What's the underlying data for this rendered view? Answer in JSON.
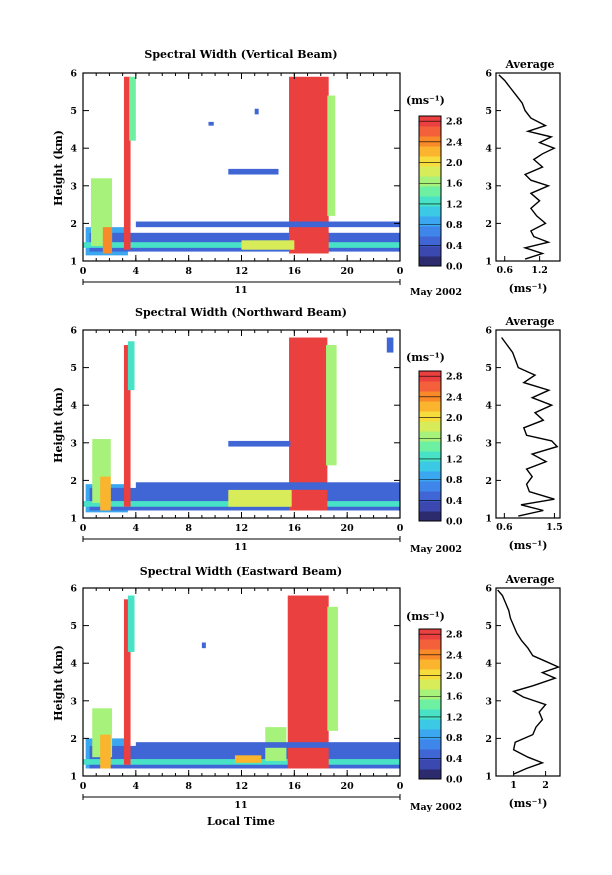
{
  "colors": {
    "scale": [
      "#2b2b6e",
      "#3a48b0",
      "#3f66d4",
      "#3f86ea",
      "#3aa7f0",
      "#3cc9e6",
      "#48e3c6",
      "#6ef0a2",
      "#a6f27a",
      "#d8ec5a",
      "#f7dc3e",
      "#fbb42e",
      "#f98a2a",
      "#f4603a",
      "#ea4040"
    ],
    "high": "#ee3a34",
    "profile": "#000000"
  },
  "footer": {
    "xlabel": "Local Time"
  },
  "chart_data": [
    {
      "type": "heatmap",
      "title": "Spectral Width (Vertical Beam)",
      "xlabel": "",
      "ylabel": "Height (km)",
      "x_ticks": [
        "0",
        "4",
        "8",
        "12",
        "16",
        "20",
        "0"
      ],
      "xlim": [
        0,
        24
      ],
      "y_ticks": [
        "1",
        "2",
        "3",
        "4",
        "5",
        "6"
      ],
      "ylim": [
        1,
        6
      ],
      "date_day": "11",
      "date_month": "May 2002",
      "colorbar": {
        "unit": "(ms⁻¹)",
        "labels": [
          "0.0",
          "0.4",
          "0.8",
          "1.2",
          "1.6",
          "2.0",
          "2.4",
          "2.8"
        ],
        "range": [
          0,
          2.9
        ]
      },
      "cells": [
        {
          "t": [
            0.2,
            3.4
          ],
          "h": [
            1.15,
            1.9
          ],
          "v": 0.9
        },
        {
          "t": [
            0.5,
            24
          ],
          "h": [
            1.25,
            1.75
          ],
          "v": 0.55
        },
        {
          "t": [
            0,
            24
          ],
          "h": [
            1.35,
            1.5
          ],
          "v": 1.3
        },
        {
          "t": [
            0.6,
            2.2
          ],
          "h": [
            1.4,
            3.2
          ],
          "v": 1.7
        },
        {
          "t": [
            3.1,
            3.6
          ],
          "h": [
            1.3,
            5.9
          ],
          "v": 2.9
        },
        {
          "t": [
            3.5,
            4.0
          ],
          "h": [
            4.2,
            5.9
          ],
          "v": 1.4
        },
        {
          "t": [
            15.6,
            18.6
          ],
          "h": [
            1.2,
            5.9
          ],
          "v": 2.9
        },
        {
          "t": [
            18.5,
            19.1
          ],
          "h": [
            2.2,
            5.4
          ],
          "v": 1.6
        },
        {
          "t": [
            12.0,
            16.0
          ],
          "h": [
            1.3,
            1.55
          ],
          "v": 1.9
        },
        {
          "t": [
            11.0,
            14.8
          ],
          "h": [
            3.3,
            3.45
          ],
          "v": 0.5
        },
        {
          "t": [
            4.0,
            24
          ],
          "h": [
            1.9,
            2.05
          ],
          "v": 0.5
        },
        {
          "t": [
            1.5,
            2.2
          ],
          "h": [
            1.2,
            1.9
          ],
          "v": 2.4
        },
        {
          "t": [
            9.5,
            9.9
          ],
          "h": [
            4.6,
            4.7
          ],
          "v": 0.4
        },
        {
          "t": [
            13.0,
            13.3
          ],
          "h": [
            4.9,
            5.05
          ],
          "v": 0.5
        }
      ],
      "profile": {
        "xlabel": "(ms⁻¹)",
        "title": "Average",
        "x_ticks": [
          "0.6",
          "1.2"
        ],
        "xlim": [
          0.45,
          1.55
        ],
        "heights": [
          1.05,
          1.2,
          1.35,
          1.5,
          1.65,
          1.8,
          2.0,
          2.2,
          2.4,
          2.6,
          2.8,
          3.0,
          3.15,
          3.3,
          3.5,
          3.7,
          3.85,
          4.0,
          4.15,
          4.3,
          4.45,
          4.6,
          4.8,
          5.0,
          5.2,
          5.4,
          5.6,
          5.8,
          5.95
        ],
        "values": [
          0.95,
          1.25,
          0.95,
          1.35,
          1.1,
          1.05,
          1.3,
          1.15,
          1.05,
          1.2,
          1.05,
          1.35,
          1.05,
          0.95,
          1.25,
          1.1,
          1.25,
          1.45,
          1.2,
          1.4,
          1.0,
          1.3,
          1.05,
          0.95,
          0.9,
          0.8,
          0.7,
          0.6,
          0.5
        ]
      }
    },
    {
      "type": "heatmap",
      "title": "Spectral Width (Northward Beam)",
      "xlabel": "",
      "ylabel": "Height (km)",
      "x_ticks": [
        "0",
        "4",
        "8",
        "12",
        "16",
        "20",
        "0"
      ],
      "xlim": [
        0,
        24
      ],
      "y_ticks": [
        "1",
        "2",
        "3",
        "4",
        "5",
        "6"
      ],
      "ylim": [
        1,
        6
      ],
      "date_day": "11",
      "date_month": "May 2002",
      "colorbar": {
        "unit": "(ms⁻¹)",
        "labels": [
          "0.0",
          "0.4",
          "0.8",
          "1.2",
          "1.6",
          "2.0",
          "2.4",
          "2.8"
        ],
        "range": [
          0,
          2.9
        ]
      },
      "cells": [
        {
          "t": [
            0.2,
            3.4
          ],
          "h": [
            1.15,
            1.9
          ],
          "v": 0.9
        },
        {
          "t": [
            0.5,
            24
          ],
          "h": [
            1.2,
            1.8
          ],
          "v": 0.5
        },
        {
          "t": [
            0,
            24
          ],
          "h": [
            1.3,
            1.45
          ],
          "v": 1.25
        },
        {
          "t": [
            0.7,
            2.1
          ],
          "h": [
            1.4,
            3.1
          ],
          "v": 1.6
        },
        {
          "t": [
            3.1,
            3.6
          ],
          "h": [
            1.3,
            5.6
          ],
          "v": 2.9
        },
        {
          "t": [
            3.4,
            3.9
          ],
          "h": [
            4.4,
            5.7
          ],
          "v": 1.3
        },
        {
          "t": [
            15.6,
            18.5
          ],
          "h": [
            1.2,
            5.8
          ],
          "v": 2.9
        },
        {
          "t": [
            18.4,
            19.2
          ],
          "h": [
            2.4,
            5.6
          ],
          "v": 1.6
        },
        {
          "t": [
            11.0,
            15.8
          ],
          "h": [
            1.3,
            1.75
          ],
          "v": 1.8
        },
        {
          "t": [
            11.0,
            15.7
          ],
          "h": [
            2.9,
            3.05
          ],
          "v": 0.5
        },
        {
          "t": [
            4.0,
            24
          ],
          "h": [
            1.75,
            1.95
          ],
          "v": 0.45
        },
        {
          "t": [
            1.3,
            2.1
          ],
          "h": [
            1.2,
            2.1
          ],
          "v": 2.3
        },
        {
          "t": [
            23.0,
            23.5
          ],
          "h": [
            5.4,
            5.8
          ],
          "v": 0.4
        }
      ],
      "profile": {
        "xlabel": "(ms⁻¹)",
        "title": "Average",
        "x_ticks": [
          "0.6",
          "1.5"
        ],
        "xlim": [
          0.45,
          1.6
        ],
        "heights": [
          1.05,
          1.2,
          1.35,
          1.5,
          1.7,
          1.9,
          2.1,
          2.3,
          2.5,
          2.7,
          2.9,
          3.05,
          3.2,
          3.4,
          3.6,
          3.8,
          4.0,
          4.2,
          4.4,
          4.6,
          4.8,
          5.0,
          5.2,
          5.4,
          5.6,
          5.8
        ],
        "values": [
          0.85,
          1.3,
          0.9,
          1.5,
          1.05,
          1.0,
          1.1,
          1.0,
          1.35,
          1.1,
          1.55,
          1.45,
          1.0,
          0.95,
          1.3,
          1.15,
          1.45,
          1.1,
          1.4,
          0.95,
          1.15,
          0.85,
          0.8,
          0.75,
          0.65,
          0.55
        ]
      }
    },
    {
      "type": "heatmap",
      "title": "Spectral Width (Eastward Beam)",
      "xlabel": "Local Time",
      "ylabel": "Height (km)",
      "x_ticks": [
        "0",
        "4",
        "8",
        "12",
        "16",
        "20",
        "0"
      ],
      "xlim": [
        0,
        24
      ],
      "y_ticks": [
        "1",
        "2",
        "3",
        "4",
        "5",
        "6"
      ],
      "ylim": [
        1,
        6
      ],
      "date_day": "11",
      "date_month": "May 2002",
      "colorbar": {
        "unit": "(ms⁻¹)",
        "labels": [
          "0.0",
          "0.4",
          "0.8",
          "1.2",
          "1.6",
          "2.0",
          "2.4",
          "2.8"
        ],
        "range": [
          0,
          2.9
        ]
      },
      "cells": [
        {
          "t": [
            0.2,
            3.4
          ],
          "h": [
            1.2,
            2.0
          ],
          "v": 0.9
        },
        {
          "t": [
            0.5,
            24
          ],
          "h": [
            1.2,
            1.8
          ],
          "v": 0.5
        },
        {
          "t": [
            0,
            24
          ],
          "h": [
            1.3,
            1.45
          ],
          "v": 1.25
        },
        {
          "t": [
            0.7,
            2.2
          ],
          "h": [
            1.5,
            2.8
          ],
          "v": 1.7
        },
        {
          "t": [
            3.1,
            3.6
          ],
          "h": [
            1.3,
            5.7
          ],
          "v": 2.9
        },
        {
          "t": [
            3.4,
            3.9
          ],
          "h": [
            4.3,
            5.8
          ],
          "v": 1.3
        },
        {
          "t": [
            15.5,
            18.6
          ],
          "h": [
            1.2,
            5.8
          ],
          "v": 2.9
        },
        {
          "t": [
            18.5,
            19.3
          ],
          "h": [
            2.2,
            5.5
          ],
          "v": 1.6
        },
        {
          "t": [
            11.5,
            13.5
          ],
          "h": [
            1.35,
            1.55
          ],
          "v": 2.2
        },
        {
          "t": [
            13.8,
            15.4
          ],
          "h": [
            1.4,
            2.3
          ],
          "v": 1.7
        },
        {
          "t": [
            4.0,
            24
          ],
          "h": [
            1.75,
            1.9
          ],
          "v": 0.45
        },
        {
          "t": [
            1.3,
            2.1
          ],
          "h": [
            1.2,
            2.1
          ],
          "v": 2.3
        },
        {
          "t": [
            9.0,
            9.3
          ],
          "h": [
            4.4,
            4.55
          ],
          "v": 0.4
        }
      ],
      "profile": {
        "xlabel": "(ms⁻¹)",
        "title": "Average",
        "x_ticks": [
          "1",
          "2"
        ],
        "xlim": [
          0.45,
          2.45
        ],
        "heights": [
          1.05,
          1.2,
          1.35,
          1.5,
          1.7,
          1.9,
          2.1,
          2.3,
          2.5,
          2.7,
          2.9,
          3.1,
          3.25,
          3.4,
          3.6,
          3.75,
          3.9,
          4.05,
          4.2,
          4.4,
          4.6,
          4.8,
          5.0,
          5.2,
          5.4,
          5.6,
          5.8,
          5.95
        ],
        "values": [
          1.0,
          1.4,
          1.9,
          1.45,
          1.0,
          1.05,
          1.6,
          1.7,
          1.9,
          1.8,
          2.0,
          1.3,
          1.0,
          1.6,
          2.3,
          1.9,
          2.4,
          2.0,
          1.6,
          1.45,
          1.25,
          1.1,
          1.0,
          0.9,
          0.85,
          0.75,
          0.65,
          0.5
        ]
      }
    }
  ]
}
